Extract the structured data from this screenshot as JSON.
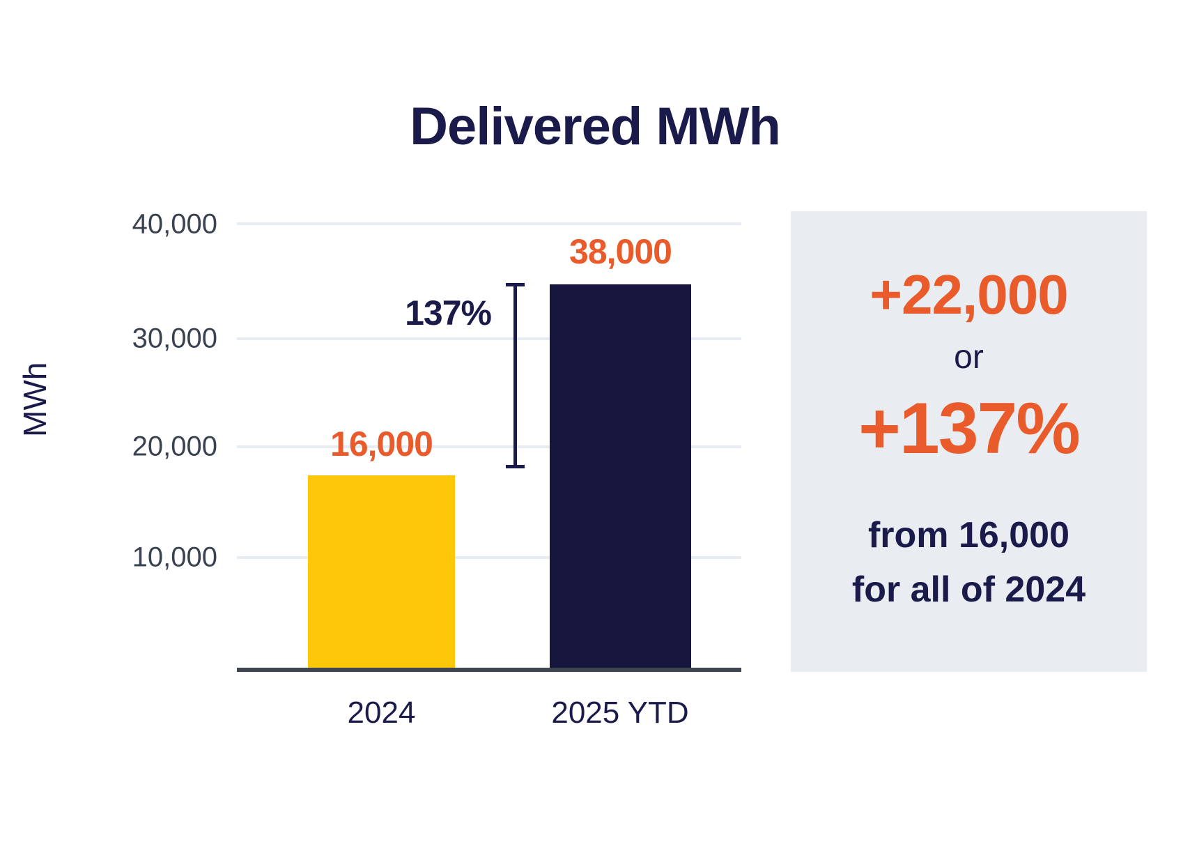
{
  "chart_data": {
    "type": "bar",
    "title": "Delivered MWh",
    "ylabel": "MWh",
    "xlabel": "",
    "categories": [
      "2024",
      "2025 YTD"
    ],
    "values": [
      16000,
      38000
    ],
    "value_labels": [
      "16,000",
      "38,000"
    ],
    "series_colors": [
      "#FFC709",
      "#16163F"
    ],
    "ylim": [
      0,
      40000
    ],
    "yticks": [
      40000,
      30000,
      20000,
      10000
    ],
    "ytick_labels": [
      "40,000",
      "30,000",
      "20,000",
      "10,000"
    ],
    "grid": true,
    "legend": false,
    "annotation": {
      "label": "137%",
      "kind": "change-bracket",
      "from_category": "2024",
      "from_value": 16000,
      "to_category": "2025 YTD",
      "to_value": 38000
    }
  },
  "callout": {
    "background": "#E9EDF1",
    "delta": "+22,000",
    "conjunction": "or",
    "percent": "+137%",
    "context_line_1": "from 16,000",
    "context_line_2": "for all of 2024"
  },
  "colors": {
    "orange": "#EA5B2B",
    "navy_text": "#1B1B4B",
    "yellow_bar": "#FFC709",
    "navy_bar": "#16163F",
    "axis_line": "#3E4550",
    "gridline": "#E7ECF2",
    "ytick_text": "#3A4150",
    "page_background": "#FFFFFF"
  }
}
